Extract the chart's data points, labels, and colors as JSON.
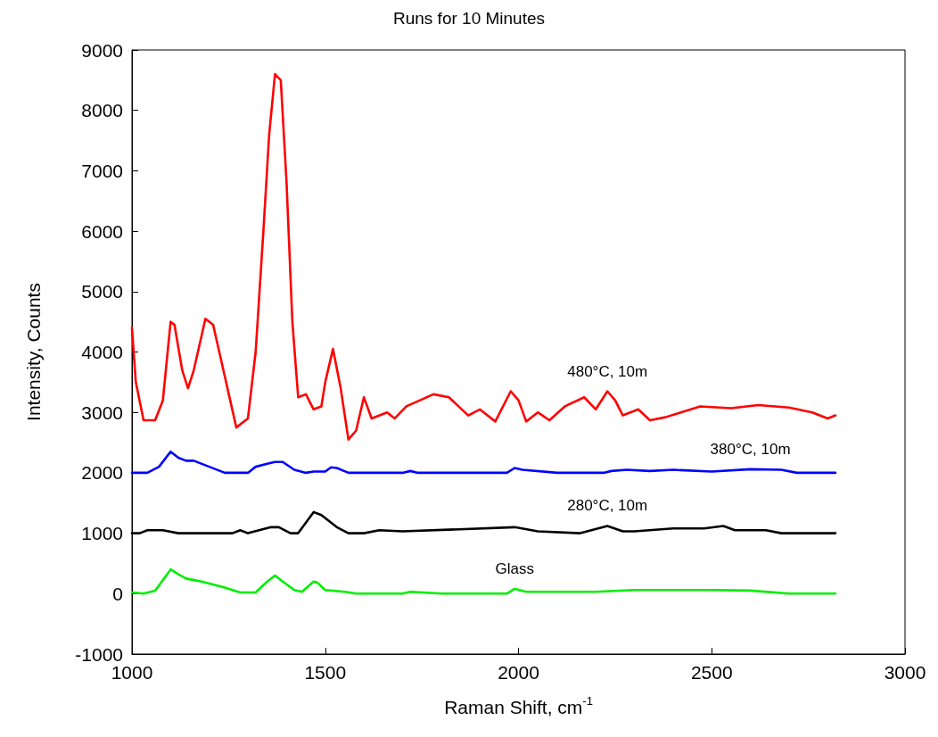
{
  "chart_data": {
    "type": "line",
    "title": "Runs for 10 Minutes",
    "xlabel": "Raman Shift, cm$^{-1}$",
    "ylabel": "Intensity, Counts",
    "xlim": [
      1000,
      3000
    ],
    "xticks": [
      1000,
      1500,
      2000,
      2500,
      3000
    ],
    "ylim": [
      -1000,
      9000
    ],
    "yticks": [
      -1000,
      0,
      1000,
      2000,
      3000,
      4000,
      5000,
      6000,
      7000,
      8000,
      9000
    ],
    "grid": false,
    "legend": false,
    "marker": "none",
    "line_style": "solid",
    "series": [
      {
        "name": "480°C, 10m",
        "color": "#ff0000",
        "x": [
          1000,
          1010,
          1030,
          1060,
          1080,
          1100,
          1110,
          1130,
          1145,
          1160,
          1190,
          1210,
          1240,
          1270,
          1300,
          1320,
          1340,
          1355,
          1370,
          1385,
          1400,
          1415,
          1430,
          1450,
          1470,
          1490,
          1500,
          1520,
          1540,
          1560,
          1580,
          1600,
          1620,
          1660,
          1680,
          1710,
          1780,
          1820,
          1870,
          1900,
          1940,
          1980,
          2000,
          2020,
          2050,
          2080,
          2120,
          2170,
          2200,
          2230,
          2250,
          2270,
          2310,
          2340,
          2380,
          2420,
          2470,
          2550,
          2620,
          2700,
          2760,
          2800,
          2820
        ],
        "values": [
          4400,
          3500,
          2870,
          2870,
          3200,
          4500,
          4450,
          3700,
          3400,
          3700,
          4550,
          4450,
          3600,
          2750,
          2900,
          4000,
          6000,
          7600,
          8600,
          8500,
          6800,
          4500,
          3250,
          3300,
          3050,
          3100,
          3500,
          4050,
          3400,
          2550,
          2700,
          3250,
          2900,
          3000,
          2900,
          3100,
          3300,
          3250,
          2950,
          3050,
          2850,
          3350,
          3200,
          2850,
          3000,
          2870,
          3100,
          3250,
          3050,
          3350,
          3200,
          2950,
          3050,
          2870,
          2920,
          3000,
          3100,
          3070,
          3120,
          3080,
          3000,
          2900,
          2950
        ]
      },
      {
        "name": "380°C, 10m",
        "color": "#0000ff",
        "x": [
          1000,
          1040,
          1070,
          1100,
          1120,
          1140,
          1160,
          1200,
          1240,
          1300,
          1320,
          1350,
          1370,
          1390,
          1420,
          1450,
          1470,
          1500,
          1515,
          1530,
          1560,
          1600,
          1700,
          1720,
          1740,
          1970,
          1990,
          2010,
          2100,
          2220,
          2240,
          2280,
          2340,
          2400,
          2500,
          2600,
          2680,
          2720,
          2820
        ],
        "values": [
          2000,
          2000,
          2100,
          2350,
          2250,
          2200,
          2200,
          2100,
          2000,
          2000,
          2100,
          2150,
          2180,
          2180,
          2050,
          2000,
          2020,
          2020,
          2090,
          2080,
          2000,
          2000,
          2000,
          2030,
          2000,
          2000,
          2080,
          2050,
          2000,
          2000,
          2030,
          2050,
          2030,
          2050,
          2020,
          2060,
          2050,
          2000,
          2000
        ]
      },
      {
        "name": "280°C, 10m",
        "color": "#000000",
        "x": [
          1000,
          1020,
          1040,
          1080,
          1120,
          1160,
          1200,
          1260,
          1280,
          1300,
          1360,
          1380,
          1410,
          1430,
          1470,
          1490,
          1530,
          1560,
          1600,
          1640,
          1700,
          1990,
          2050,
          2160,
          2230,
          2270,
          2300,
          2400,
          2480,
          2530,
          2560,
          2640,
          2680,
          2820
        ],
        "values": [
          1000,
          1000,
          1050,
          1050,
          1000,
          1000,
          1000,
          1000,
          1050,
          1000,
          1100,
          1100,
          1000,
          1000,
          1350,
          1300,
          1100,
          1000,
          1000,
          1050,
          1030,
          1100,
          1030,
          1000,
          1120,
          1030,
          1030,
          1080,
          1080,
          1120,
          1050,
          1050,
          1000,
          1000
        ]
      },
      {
        "name": "Glass",
        "color": "#00ee00",
        "x": [
          1000,
          1030,
          1060,
          1100,
          1120,
          1140,
          1180,
          1240,
          1280,
          1320,
          1350,
          1370,
          1390,
          1420,
          1440,
          1470,
          1480,
          1500,
          1550,
          1580,
          1700,
          1720,
          1800,
          1970,
          1990,
          2020,
          2200,
          2300,
          2400,
          2500,
          2600,
          2700,
          2820
        ],
        "values": [
          20,
          0,
          50,
          400,
          320,
          250,
          200,
          100,
          20,
          20,
          200,
          300,
          200,
          60,
          30,
          200,
          180,
          60,
          30,
          0,
          0,
          30,
          0,
          0,
          80,
          30,
          30,
          60,
          60,
          60,
          50,
          0,
          0
        ]
      }
    ]
  }
}
